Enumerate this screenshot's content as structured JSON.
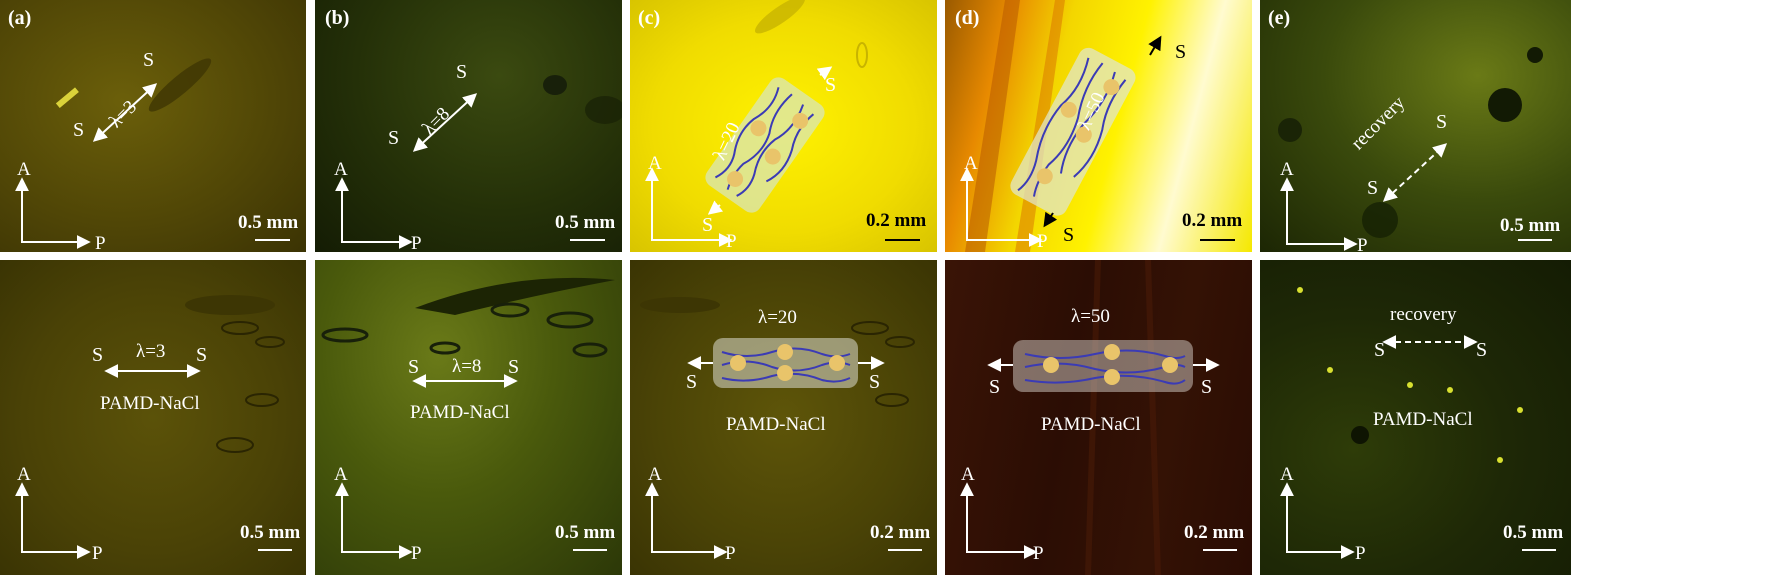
{
  "panels": {
    "a": {
      "label": "(a)",
      "lambda": "λ=3",
      "scale": "0.5 mm"
    },
    "b": {
      "label": "(b)",
      "lambda": "λ=8",
      "scale": "0.5 mm"
    },
    "c": {
      "label": "(c)",
      "lambda": "λ=20",
      "scale": "0.2 mm"
    },
    "d": {
      "label": "(d)",
      "lambda": "λ=50",
      "scale": "0.2 mm"
    },
    "e": {
      "label": "(e)",
      "text": "recovery",
      "scale": "0.5 mm"
    }
  },
  "common": {
    "stretch_symbol": "S",
    "analyzer": "A",
    "polarizer": "P",
    "sample": "PAMD-NaCl"
  },
  "colors": {
    "dim_yellow": "#5a4f05",
    "dark_green": "#1f2a08",
    "bright_yellow": "#f3e000",
    "dark_brown": "#2b0d04",
    "bead": "#e9c46a",
    "chain": "#3b3bb5"
  }
}
